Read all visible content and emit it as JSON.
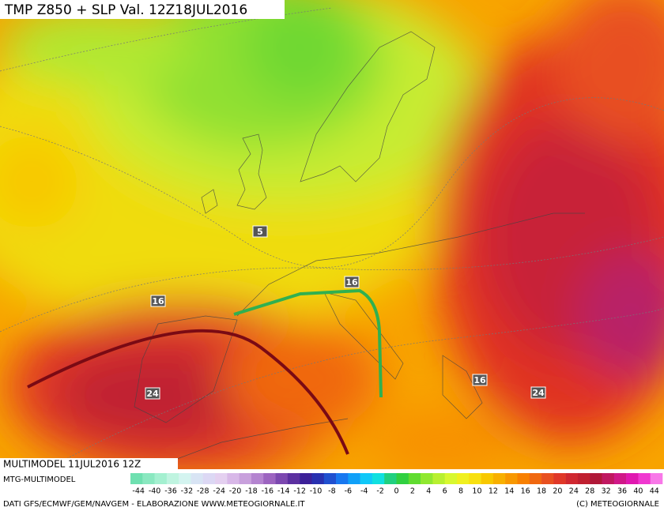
{
  "header": {
    "title": "TMP Z850 + SLP Val. 12Z18JUL2016"
  },
  "map": {
    "labels": [
      "16",
      "5",
      "16",
      "24",
      "16",
      "24"
    ]
  },
  "footer": {
    "run": "MULTIMODEL 11JUL2016 12Z",
    "model": "MTG-MULTIMODEL",
    "credits": "DATI GFS/ECMWF/GEM/NAVGEM - ELABORAZIONE WWW.METEOGIORNALE.IT",
    "copyright": "(C) METEOGIORNALE"
  },
  "colorbar": {
    "labels": [
      "-44",
      "-40",
      "-36",
      "-32",
      "-28",
      "-24",
      "-20",
      "-18",
      "-16",
      "-14",
      "-12",
      "-10",
      "-8",
      "-6",
      "-4",
      "-2",
      "0",
      "2",
      "4",
      "6",
      "8",
      "10",
      "12",
      "14",
      "16",
      "18",
      "20",
      "24",
      "28",
      "32",
      "36",
      "40",
      "44"
    ],
    "colors": [
      "#6fe0b0",
      "#8ae8c0",
      "#a4f0d0",
      "#bff4e0",
      "#d4f4f0",
      "#d8e4f4",
      "#dcd8f4",
      "#e4d0f0",
      "#d8b8e8",
      "#c8a0dc",
      "#b484d0",
      "#9c64c0",
      "#7c48b0",
      "#5c30a0",
      "#3c2098",
      "#2830b0",
      "#2050d0",
      "#1878f0",
      "#10a0f8",
      "#10c8f8",
      "#10e0e0",
      "#20d080",
      "#30d040",
      "#60dc30",
      "#90e830",
      "#b8f030",
      "#d8f830",
      "#f0f020",
      "#f8e010",
      "#f8c800",
      "#f8b000",
      "#f89800",
      "#f88000",
      "#f06810",
      "#e85020",
      "#e03828",
      "#d02830",
      "#c02030",
      "#b01838",
      "#c01860",
      "#d01888",
      "#e018b0",
      "#f038d0",
      "#f878e8"
    ]
  }
}
